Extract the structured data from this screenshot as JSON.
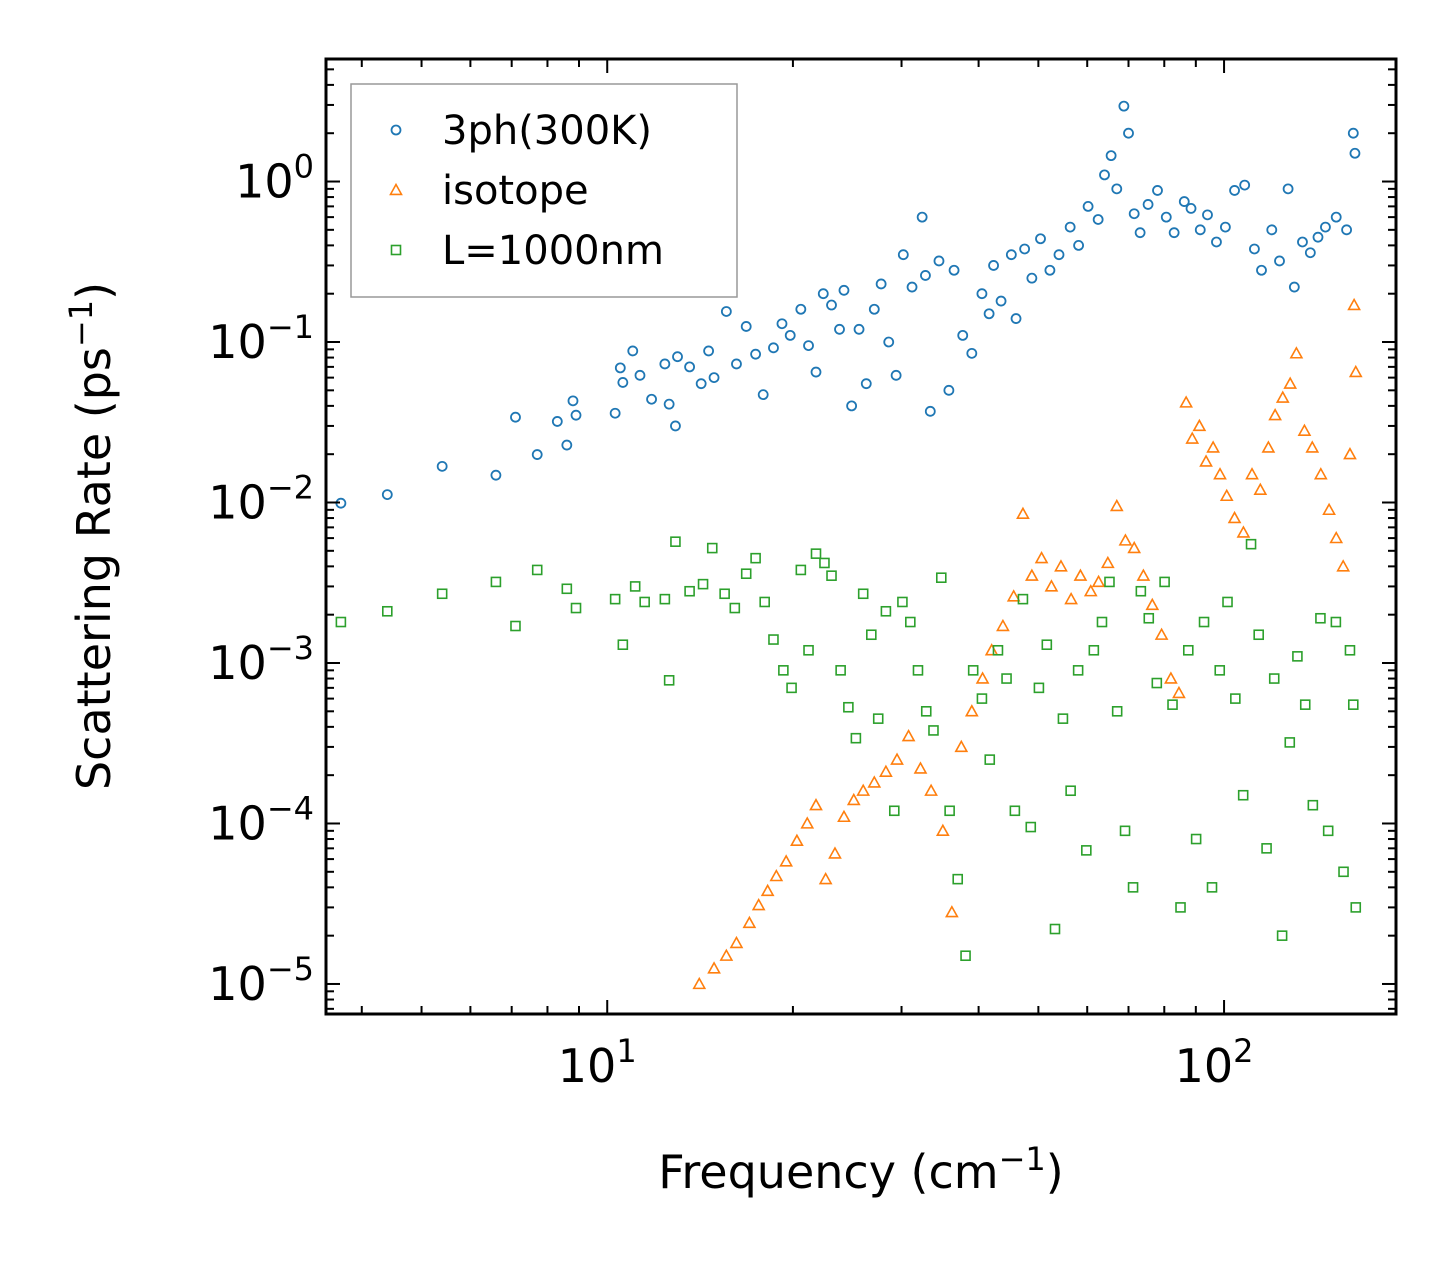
{
  "chart_data": {
    "type": "scatter",
    "title": "",
    "xlabel": "Frequency (cm",
    "xlabel_sup": "−1",
    "xlabel_tail": ")",
    "ylabel": "Scattering Rate (ps",
    "ylabel_sup": "−1",
    "ylabel_tail": ")",
    "xscale": "log",
    "yscale": "log",
    "xlim": [
      3.5,
      190
    ],
    "ylim": [
      6.5e-06,
      5.8
    ],
    "x_tick_labels": [
      {
        "value": 10,
        "base": "10",
        "exp": "1"
      },
      {
        "value": 100,
        "base": "10",
        "exp": "2"
      }
    ],
    "y_tick_labels": [
      {
        "value": 1,
        "base": "10",
        "exp": "0"
      },
      {
        "value": 0.1,
        "base": "10",
        "exp": "−1"
      },
      {
        "value": 0.01,
        "base": "10",
        "exp": "−2"
      },
      {
        "value": 0.001,
        "base": "10",
        "exp": "−3"
      },
      {
        "value": 0.0001,
        "base": "10",
        "exp": "−4"
      },
      {
        "value": 1e-05,
        "base": "10",
        "exp": "−5"
      }
    ],
    "legend_position": "top-left",
    "series": [
      {
        "name": "3ph(300K)",
        "marker": "circle",
        "color": "#1f77b4",
        "points": [
          [
            3.7,
            0.0099
          ],
          [
            4.4,
            0.0112
          ],
          [
            5.4,
            0.0168
          ],
          [
            6.6,
            0.0148
          ],
          [
            7.1,
            0.034
          ],
          [
            7.7,
            0.0199
          ],
          [
            8.3,
            0.032
          ],
          [
            8.6,
            0.0228
          ],
          [
            8.8,
            0.043
          ],
          [
            8.9,
            0.035
          ],
          [
            10.3,
            0.036
          ],
          [
            10.5,
            0.069
          ],
          [
            10.6,
            0.056
          ],
          [
            11.0,
            0.088
          ],
          [
            11.3,
            0.062
          ],
          [
            11.8,
            0.044
          ],
          [
            12.4,
            0.073
          ],
          [
            12.6,
            0.041
          ],
          [
            12.9,
            0.03
          ],
          [
            13.0,
            0.081
          ],
          [
            13.6,
            0.07
          ],
          [
            14.2,
            0.055
          ],
          [
            14.6,
            0.088
          ],
          [
            14.9,
            0.06
          ],
          [
            15.6,
            0.155
          ],
          [
            16.2,
            0.073
          ],
          [
            16.8,
            0.125
          ],
          [
            17.4,
            0.084
          ],
          [
            17.9,
            0.047
          ],
          [
            18.6,
            0.092
          ],
          [
            19.2,
            0.13
          ],
          [
            19.8,
            0.11
          ],
          [
            20.6,
            0.16
          ],
          [
            21.2,
            0.095
          ],
          [
            21.8,
            0.065
          ],
          [
            22.4,
            0.2
          ],
          [
            23.1,
            0.17
          ],
          [
            23.8,
            0.12
          ],
          [
            24.2,
            0.21
          ],
          [
            24.9,
            0.04
          ],
          [
            25.6,
            0.12
          ],
          [
            26.3,
            0.055
          ],
          [
            27.1,
            0.16
          ],
          [
            27.8,
            0.23
          ],
          [
            28.6,
            0.1
          ],
          [
            29.4,
            0.062
          ],
          [
            30.2,
            0.35
          ],
          [
            31.2,
            0.22
          ],
          [
            32.4,
            0.6
          ],
          [
            32.8,
            0.26
          ],
          [
            33.4,
            0.037
          ],
          [
            34.5,
            0.32
          ],
          [
            35.8,
            0.05
          ],
          [
            36.5,
            0.28
          ],
          [
            37.7,
            0.11
          ],
          [
            39.0,
            0.085
          ],
          [
            40.5,
            0.2
          ],
          [
            41.6,
            0.15
          ],
          [
            42.3,
            0.3
          ],
          [
            43.5,
            0.18
          ],
          [
            45.2,
            0.35
          ],
          [
            46.0,
            0.14
          ],
          [
            47.5,
            0.38
          ],
          [
            48.8,
            0.25
          ],
          [
            50.4,
            0.44
          ],
          [
            52.2,
            0.28
          ],
          [
            54.0,
            0.35
          ],
          [
            56.3,
            0.52
          ],
          [
            58.1,
            0.4
          ],
          [
            60.2,
            0.7
          ],
          [
            62.5,
            0.58
          ],
          [
            64.0,
            1.1
          ],
          [
            65.6,
            1.45
          ],
          [
            67.0,
            0.9
          ],
          [
            68.8,
            2.95
          ],
          [
            70.0,
            2.0
          ],
          [
            71.5,
            0.63
          ],
          [
            73.1,
            0.48
          ],
          [
            75.3,
            0.72
          ],
          [
            78.0,
            0.88
          ],
          [
            80.6,
            0.6
          ],
          [
            83.0,
            0.48
          ],
          [
            86.2,
            0.75
          ],
          [
            88.4,
            0.68
          ],
          [
            91.5,
            0.5
          ],
          [
            94.0,
            0.62
          ],
          [
            97.2,
            0.42
          ],
          [
            100.5,
            0.52
          ],
          [
            104.0,
            0.88
          ],
          [
            108.0,
            0.95
          ],
          [
            112.0,
            0.38
          ],
          [
            115.0,
            0.28
          ],
          [
            119.5,
            0.5
          ],
          [
            123.0,
            0.32
          ],
          [
            127.0,
            0.9
          ],
          [
            130.0,
            0.22
          ],
          [
            134.0,
            0.42
          ],
          [
            138.0,
            0.36
          ],
          [
            142.0,
            0.45
          ],
          [
            146.0,
            0.52
          ],
          [
            152.0,
            0.6
          ],
          [
            158.0,
            0.5
          ],
          [
            162.0,
            2.0
          ],
          [
            163.0,
            1.5
          ]
        ]
      },
      {
        "name": "isotope",
        "marker": "triangle",
        "color": "#ff7f0e",
        "points": [
          [
            14.1,
            1e-05
          ],
          [
            14.9,
            1.25e-05
          ],
          [
            15.6,
            1.5e-05
          ],
          [
            16.2,
            1.8e-05
          ],
          [
            17.0,
            2.4e-05
          ],
          [
            17.6,
            3.1e-05
          ],
          [
            18.2,
            3.8e-05
          ],
          [
            18.8,
            4.7e-05
          ],
          [
            19.5,
            5.8e-05
          ],
          [
            20.3,
            7.8e-05
          ],
          [
            21.1,
            0.0001
          ],
          [
            21.8,
            0.00013
          ],
          [
            22.6,
            4.5e-05
          ],
          [
            23.4,
            6.5e-05
          ],
          [
            24.2,
            0.00011
          ],
          [
            25.1,
            0.00014
          ],
          [
            26.0,
            0.00016
          ],
          [
            27.1,
            0.00018
          ],
          [
            28.3,
            0.00021
          ],
          [
            29.5,
            0.00025
          ],
          [
            30.8,
            0.00035
          ],
          [
            32.2,
            0.00022
          ],
          [
            33.5,
            0.00016
          ],
          [
            35.0,
            9e-05
          ],
          [
            36.2,
            2.8e-05
          ],
          [
            37.5,
            0.0003
          ],
          [
            39.0,
            0.0005
          ],
          [
            40.6,
            0.0008
          ],
          [
            42.0,
            0.0012
          ],
          [
            43.8,
            0.0017
          ],
          [
            45.6,
            0.0026
          ],
          [
            47.2,
            0.0085
          ],
          [
            48.8,
            0.0035
          ],
          [
            50.6,
            0.0045
          ],
          [
            52.5,
            0.003
          ],
          [
            54.4,
            0.004
          ],
          [
            56.5,
            0.0025
          ],
          [
            58.5,
            0.0035
          ],
          [
            60.8,
            0.0028
          ],
          [
            62.6,
            0.0032
          ],
          [
            64.8,
            0.0042
          ],
          [
            67.0,
            0.0095
          ],
          [
            69.2,
            0.0058
          ],
          [
            71.5,
            0.0052
          ],
          [
            74.0,
            0.0035
          ],
          [
            76.5,
            0.0023
          ],
          [
            79.2,
            0.0015
          ],
          [
            82.0,
            0.0008
          ],
          [
            84.5,
            0.00065
          ],
          [
            86.8,
            0.042
          ],
          [
            88.8,
            0.025
          ],
          [
            91.2,
            0.03
          ],
          [
            93.5,
            0.018
          ],
          [
            96.0,
            0.022
          ],
          [
            98.5,
            0.015
          ],
          [
            101.0,
            0.011
          ],
          [
            104.0,
            0.008
          ],
          [
            107.5,
            0.0065
          ],
          [
            111.0,
            0.015
          ],
          [
            114.5,
            0.012
          ],
          [
            118.0,
            0.022
          ],
          [
            121.0,
            0.035
          ],
          [
            124.5,
            0.045
          ],
          [
            128.0,
            0.055
          ],
          [
            131.0,
            0.085
          ],
          [
            135.0,
            0.028
          ],
          [
            139.0,
            0.022
          ],
          [
            143.5,
            0.015
          ],
          [
            148.0,
            0.009
          ],
          [
            152.0,
            0.006
          ],
          [
            156.0,
            0.004
          ],
          [
            160.0,
            0.02
          ],
          [
            162.5,
            0.17
          ],
          [
            163.5,
            0.065
          ]
        ]
      },
      {
        "name": "L=1000nm",
        "marker": "square",
        "color": "#2ca02c",
        "points": [
          [
            3.7,
            0.0018
          ],
          [
            4.4,
            0.0021
          ],
          [
            5.4,
            0.0027
          ],
          [
            6.6,
            0.0032
          ],
          [
            7.1,
            0.0017
          ],
          [
            7.7,
            0.0038
          ],
          [
            8.6,
            0.0029
          ],
          [
            8.9,
            0.0022
          ],
          [
            10.3,
            0.0025
          ],
          [
            10.6,
            0.0013
          ],
          [
            11.1,
            0.003
          ],
          [
            11.5,
            0.0024
          ],
          [
            12.4,
            0.0025
          ],
          [
            12.6,
            0.00078
          ],
          [
            12.9,
            0.0057
          ],
          [
            13.6,
            0.0028
          ],
          [
            14.3,
            0.0031
          ],
          [
            14.8,
            0.0052
          ],
          [
            15.5,
            0.0027
          ],
          [
            16.1,
            0.0022
          ],
          [
            16.8,
            0.0036
          ],
          [
            17.4,
            0.0045
          ],
          [
            18.0,
            0.0024
          ],
          [
            18.6,
            0.0014
          ],
          [
            19.3,
            0.0009
          ],
          [
            19.9,
            0.0007
          ],
          [
            20.6,
            0.0038
          ],
          [
            21.2,
            0.0012
          ],
          [
            21.8,
            0.0048
          ],
          [
            22.5,
            0.0042
          ],
          [
            23.1,
            0.0035
          ],
          [
            23.9,
            0.0009
          ],
          [
            24.6,
            0.00053
          ],
          [
            25.3,
            0.00034
          ],
          [
            26.0,
            0.0027
          ],
          [
            26.8,
            0.0015
          ],
          [
            27.5,
            0.00045
          ],
          [
            28.3,
            0.0021
          ],
          [
            29.2,
            0.00012
          ],
          [
            30.1,
            0.0024
          ],
          [
            31.0,
            0.0018
          ],
          [
            31.9,
            0.0009
          ],
          [
            32.9,
            0.0005
          ],
          [
            33.8,
            0.00038
          ],
          [
            34.8,
            0.0034
          ],
          [
            35.9,
            0.00012
          ],
          [
            37.0,
            4.5e-05
          ],
          [
            38.1,
            1.5e-05
          ],
          [
            39.2,
            0.0009
          ],
          [
            40.5,
            0.0006
          ],
          [
            41.7,
            0.00025
          ],
          [
            43.0,
            0.0012
          ],
          [
            44.4,
            0.0008
          ],
          [
            45.8,
            0.00012
          ],
          [
            47.2,
            0.0025
          ],
          [
            48.6,
            9.5e-05
          ],
          [
            50.1,
            0.0007
          ],
          [
            51.6,
            0.0013
          ],
          [
            53.2,
            2.2e-05
          ],
          [
            54.8,
            0.00045
          ],
          [
            56.4,
            0.00016
          ],
          [
            58.0,
            0.0009
          ],
          [
            59.8,
            6.8e-05
          ],
          [
            61.5,
            0.0012
          ],
          [
            63.4,
            0.0018
          ],
          [
            65.2,
            0.0032
          ],
          [
            67.1,
            0.0005
          ],
          [
            69.1,
            9e-05
          ],
          [
            71.2,
            4e-05
          ],
          [
            73.3,
            0.0028
          ],
          [
            75.5,
            0.0019
          ],
          [
            77.8,
            0.00075
          ],
          [
            80.1,
            0.0032
          ],
          [
            82.5,
            0.00055
          ],
          [
            85.0,
            3e-05
          ],
          [
            87.5,
            0.0012
          ],
          [
            90.1,
            8e-05
          ],
          [
            92.8,
            0.0018
          ],
          [
            95.6,
            4e-05
          ],
          [
            98.4,
            0.0009
          ],
          [
            101.3,
            0.0024
          ],
          [
            104.3,
            0.0006
          ],
          [
            107.4,
            0.00015
          ],
          [
            110.6,
            0.0055
          ],
          [
            113.8,
            0.0015
          ],
          [
            117.2,
            7e-05
          ],
          [
            120.6,
            0.0008
          ],
          [
            124.2,
            2e-05
          ],
          [
            127.8,
            0.00032
          ],
          [
            131.5,
            0.0011
          ],
          [
            135.4,
            0.00055
          ],
          [
            139.3,
            0.00013
          ],
          [
            143.3,
            0.0019
          ],
          [
            147.5,
            9e-05
          ],
          [
            151.8,
            0.0018
          ],
          [
            156.2,
            5e-05
          ],
          [
            160.0,
            0.0012
          ],
          [
            162.0,
            0.00055
          ],
          [
            163.5,
            3e-05
          ]
        ]
      }
    ]
  }
}
